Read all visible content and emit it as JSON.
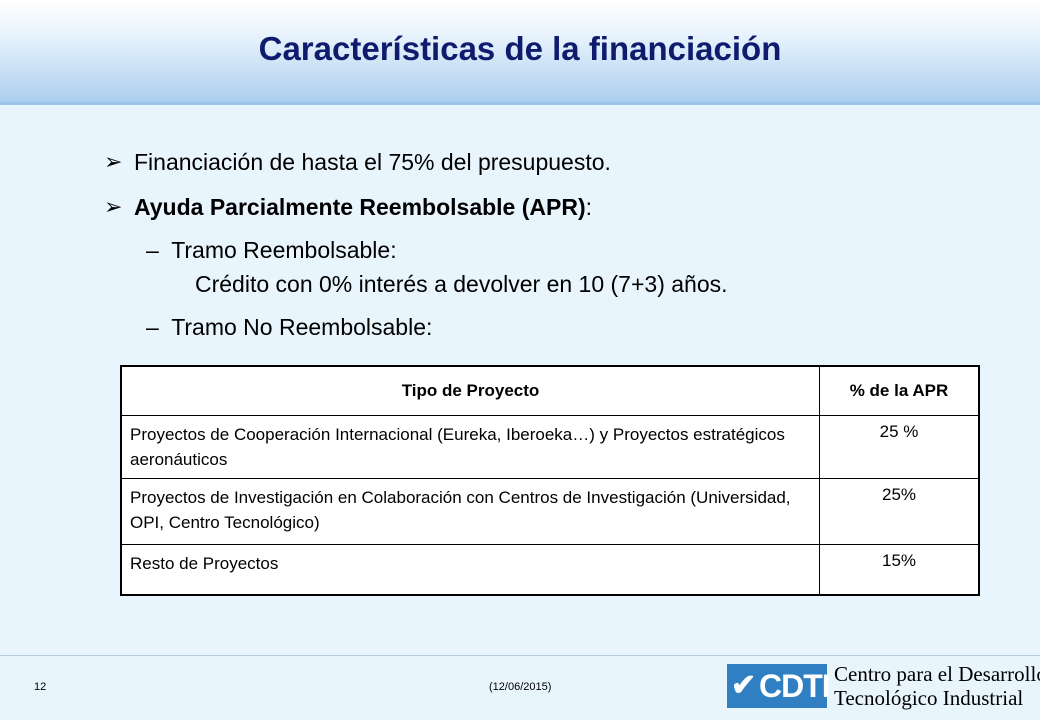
{
  "slide": {
    "title": "Características de la financiación",
    "bullets": [
      {
        "icon": "arrow-bullet-icon",
        "text": "Financiación de hasta el 75% del presupuesto."
      },
      {
        "icon": "arrow-bullet-icon",
        "bold_text": "Ayuda Parcialmente Reembolsable (APR)",
        "suffix": ":"
      }
    ],
    "sub_items": [
      {
        "dash": "–",
        "label": "Tramo Reembolsable:",
        "detail": "Crédito con 0% interés a devolver en 10 (7+3) años."
      },
      {
        "dash": "–",
        "label": "Tramo No Reembolsable:"
      }
    ]
  },
  "table": {
    "headers": [
      "Tipo de Proyecto",
      "% de la APR"
    ],
    "rows": [
      {
        "tipo": "Proyectos de Cooperación Internacional (Eureka, Iberoeka…) y Proyectos estratégicos aeronáuticos",
        "pct": "25 %"
      },
      {
        "tipo": "Proyectos de Investigación en Colaboración con Centros de Investigación (Universidad, OPI, Centro Tecnológico)",
        "pct": "25%"
      },
      {
        "tipo": "Resto de Proyectos",
        "pct": "15%"
      }
    ]
  },
  "footer": {
    "page_number": "12",
    "date": "(12/06/2015)",
    "logo_text": "CDTI",
    "org_line1": "Centro para el Desarrollo",
    "org_line2": "Tecnológico Industrial"
  },
  "colors": {
    "title": "#0f1c6e",
    "background": "#e9f5fd",
    "logo": "#2f7fc2"
  }
}
